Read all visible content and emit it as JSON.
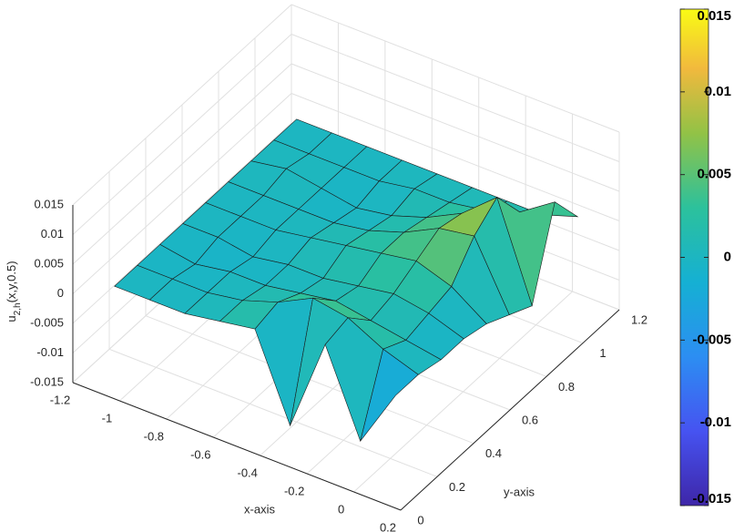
{
  "chart_data": {
    "type": "surface",
    "x": [
      -1.1,
      -0.95,
      -0.8,
      -0.65,
      -0.5,
      -0.35,
      -0.2,
      -0.05,
      0.1
    ],
    "y": [
      0.1,
      0.225,
      0.35,
      0.475,
      0.6,
      0.725,
      0.85,
      0.975,
      1.1
    ],
    "z": [
      [
        0,
        0,
        0,
        0.001,
        0.002,
        -0.012,
        0.004,
        -0.01,
        0
      ],
      [
        0,
        0,
        0,
        0.001,
        0.003,
        0.006,
        0.005,
        0.002,
        0
      ],
      [
        0,
        -0.001,
        0,
        0,
        0.001,
        0.002,
        0.001,
        0,
        -0.001
      ],
      [
        0,
        0,
        -0.001,
        0,
        0,
        0.001,
        0.002,
        0.001,
        -0.001
      ],
      [
        0,
        0,
        0,
        0.001,
        0.002,
        0.003,
        0.004,
        0.002,
        -0.002
      ],
      [
        0,
        0,
        0,
        0,
        0.001,
        0.003,
        0.006,
        0.007,
        -0.004
      ],
      [
        0,
        0.001,
        0,
        -0.001,
        0,
        0.002,
        0.005,
        0.01,
        -0.006
      ],
      [
        0,
        0,
        0,
        0,
        0.001,
        0.001,
        0.002,
        0.004,
        0.008
      ],
      [
        0,
        0,
        0,
        0,
        0,
        0,
        0,
        0,
        0.002
      ]
    ],
    "xlim": [
      -1.2,
      0.2
    ],
    "xticks": [
      -1.2,
      -1,
      -0.8,
      -0.6,
      -0.4,
      -0.2,
      0,
      0.2
    ],
    "ylim": [
      0,
      1.2
    ],
    "yticks": [
      0,
      0.2,
      0.4,
      0.6,
      0.8,
      1,
      1.2
    ],
    "zlim": [
      -0.015,
      0.015
    ],
    "zticks": [
      -0.015,
      -0.01,
      -0.005,
      0,
      0.005,
      0.01,
      0.015
    ],
    "clim": [
      -0.015,
      0.015
    ],
    "cticks": [
      -0.015,
      -0.01,
      -0.005,
      0,
      0.005,
      0.01,
      0.015
    ],
    "xlabel": "x-axis",
    "ylabel": "y-axis",
    "zlabel": {
      "base": "u",
      "sub": "2,h",
      "rest": "(x,y,0.5)"
    },
    "colormap": "parula",
    "grid": true
  }
}
